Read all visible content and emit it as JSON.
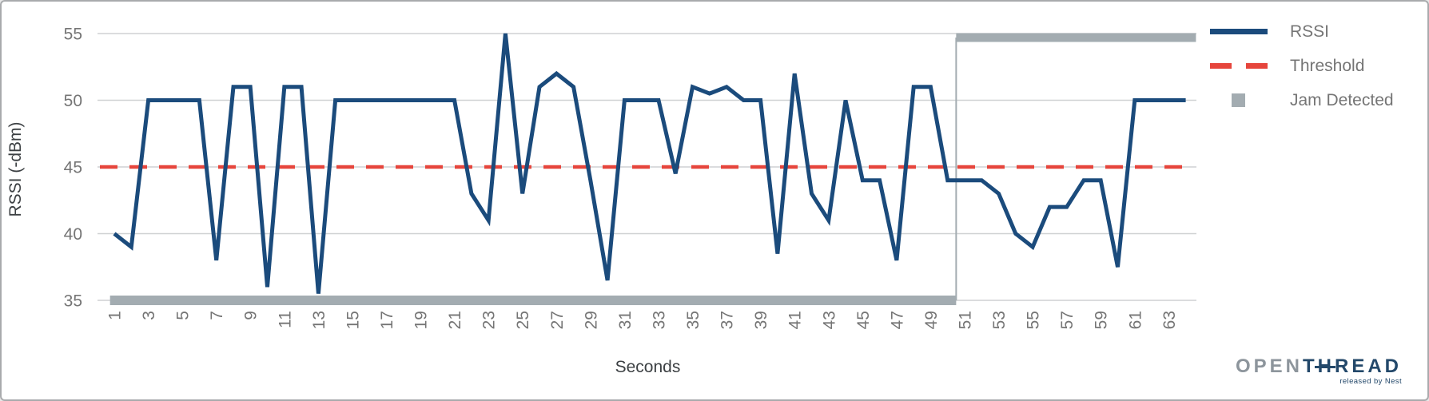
{
  "chart_data": {
    "type": "line",
    "title": "",
    "xlabel": "Seconds",
    "ylabel": "RSSI (-dBm)",
    "x_ticks": [
      1,
      3,
      5,
      7,
      9,
      11,
      13,
      15,
      17,
      19,
      21,
      23,
      25,
      27,
      29,
      31,
      33,
      35,
      37,
      39,
      41,
      43,
      45,
      47,
      49,
      51,
      53,
      55,
      57,
      59,
      61,
      63
    ],
    "y_ticks": [
      55,
      50,
      45,
      40,
      35
    ],
    "ylim": [
      35,
      55
    ],
    "xlim": [
      1,
      64
    ],
    "grid": true,
    "legend_position": "right",
    "x": [
      1,
      2,
      3,
      4,
      5,
      6,
      7,
      8,
      9,
      10,
      11,
      12,
      13,
      14,
      15,
      16,
      17,
      18,
      19,
      20,
      21,
      22,
      23,
      24,
      25,
      26,
      27,
      28,
      29,
      30,
      31,
      32,
      33,
      34,
      35,
      36,
      37,
      38,
      39,
      40,
      41,
      42,
      43,
      44,
      45,
      46,
      47,
      48,
      49,
      50,
      51,
      52,
      53,
      54,
      55,
      56,
      57,
      58,
      59,
      60,
      61,
      62,
      63,
      64
    ],
    "series": [
      {
        "name": "RSSI",
        "type": "line",
        "color": "#1b4b7c",
        "values": [
          40,
          39,
          50,
          50,
          50,
          50,
          38,
          51,
          51,
          36,
          51,
          51,
          35.5,
          50,
          50,
          50,
          50,
          50,
          50,
          50,
          50,
          43,
          41,
          55,
          43,
          51,
          52,
          51,
          44,
          36.5,
          50,
          50,
          50,
          44.5,
          51,
          50.5,
          51,
          50,
          50,
          38.5,
          52,
          43,
          41,
          50,
          44,
          44,
          38,
          51,
          51,
          44,
          44,
          44,
          43,
          40,
          39,
          42,
          42,
          44,
          44,
          37.5,
          50,
          50,
          50,
          50
        ]
      },
      {
        "name": "Threshold",
        "type": "dashed-line",
        "color": "#e6453c",
        "value": 45
      },
      {
        "name": "Jam Detected",
        "type": "step",
        "color": "#a3acb1",
        "low_value": 35,
        "high_value": 54.7,
        "transition_x": 50.5,
        "x_start": 0.75,
        "x_end": 64.6
      }
    ],
    "colors": {
      "grid": "#cfd1d3",
      "tick_text": "#757575",
      "axis_title_text": "#3c4043"
    }
  },
  "legend": {
    "items": [
      {
        "label": "RSSI",
        "swatch": "blue-line"
      },
      {
        "label": "Threshold",
        "swatch": "red-dashed-line"
      },
      {
        "label": "Jam Detected",
        "swatch": "gray-square"
      }
    ]
  },
  "logo": {
    "brand_open": "OPEN",
    "brand_t": "T",
    "brand_h": "H",
    "brand_read": "READ",
    "tagline": "released by Nest"
  }
}
